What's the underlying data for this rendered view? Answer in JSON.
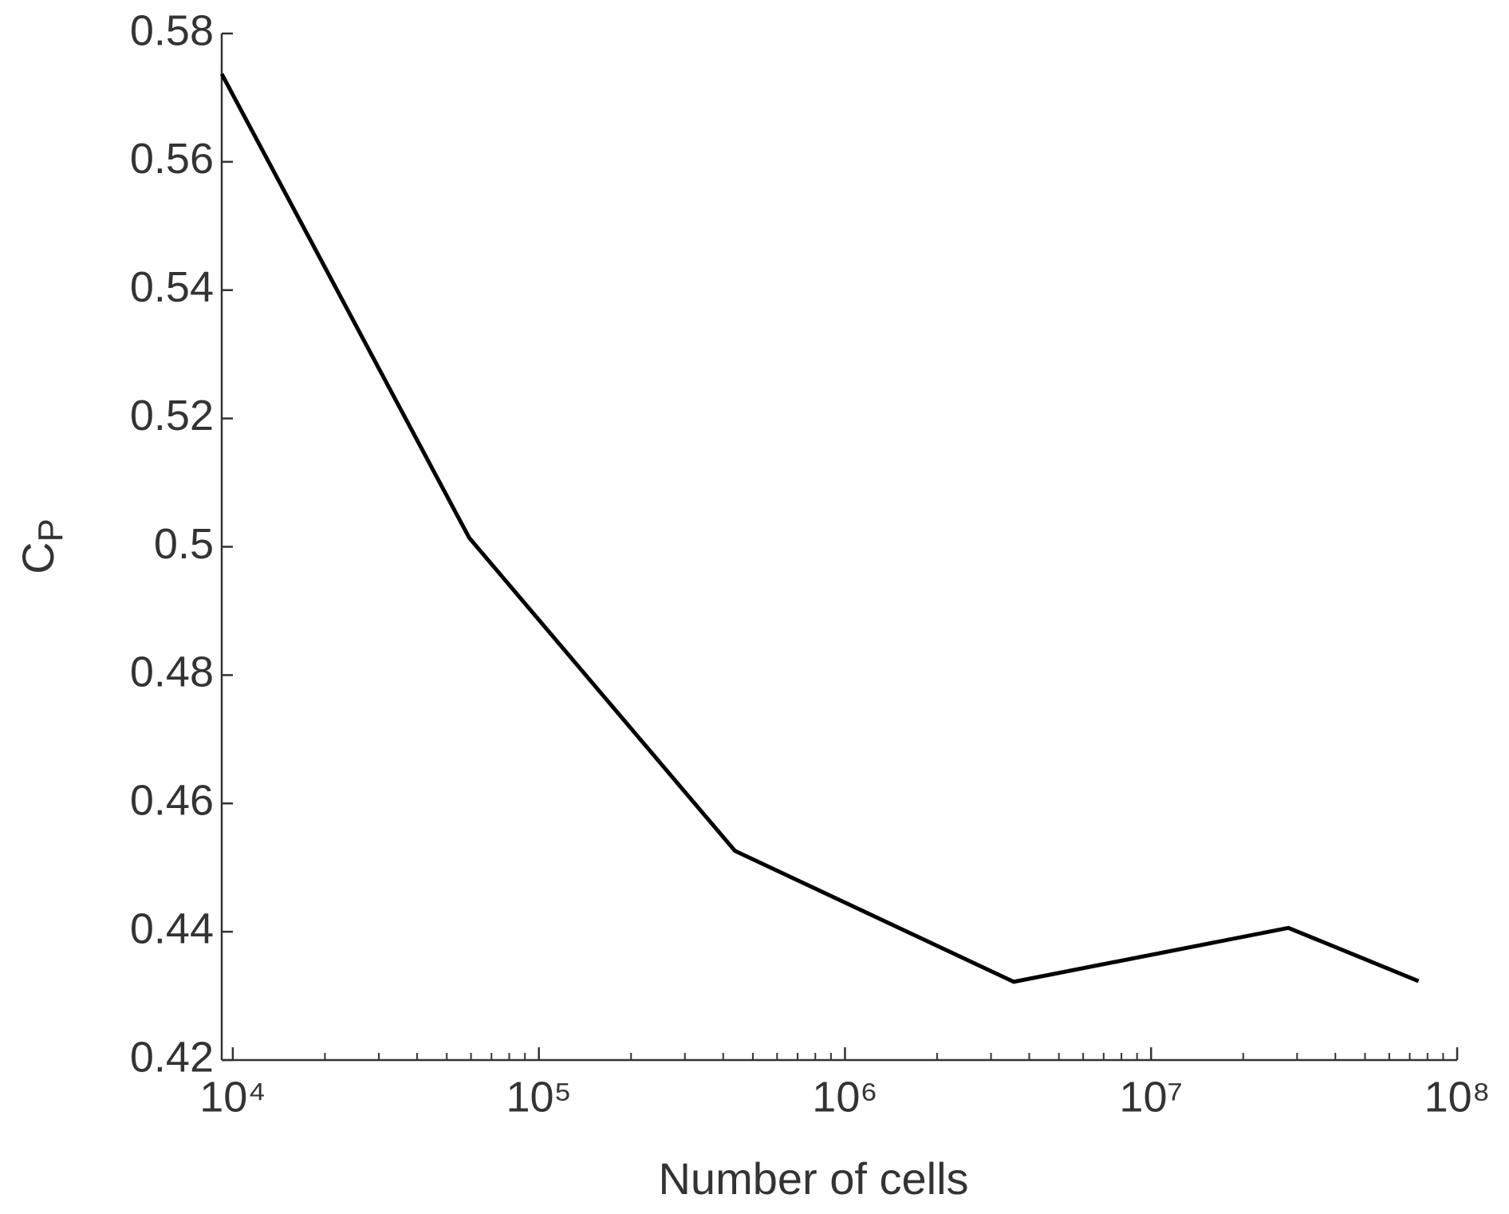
{
  "chart_data": {
    "type": "line",
    "xlabel": "Number of cells",
    "ylabel": "C",
    "ylabel_subscript": "P",
    "xscale": "log",
    "x": [
      9200,
      59200,
      437000,
      3560000,
      28100000,
      74800000
    ],
    "series": [
      {
        "color": "#000000",
        "values": [
          0.5737,
          0.5014,
          0.4526,
          0.4322,
          0.4406,
          0.4323
        ]
      }
    ],
    "xlim": [
      9200,
      100000000
    ],
    "xticks": [
      {
        "value": 10000,
        "label": "10⁴"
      },
      {
        "value": 100000,
        "label": "10⁵"
      },
      {
        "value": 1000000,
        "label": "10⁶"
      },
      {
        "value": 10000000,
        "label": "10⁷"
      },
      {
        "value": 100000000,
        "label": "10⁸"
      }
    ],
    "xminorticks": [
      20000,
      30000,
      40000,
      50000,
      60000,
      70000,
      80000,
      90000,
      200000,
      300000,
      400000,
      500000,
      600000,
      700000,
      800000,
      900000,
      2000000,
      3000000,
      4000000,
      5000000,
      6000000,
      7000000,
      8000000,
      9000000,
      20000000,
      30000000,
      40000000,
      50000000,
      60000000,
      70000000,
      80000000,
      90000000
    ],
    "ylim": [
      0.42,
      0.58
    ],
    "yticks": [
      0.42,
      0.44,
      0.46,
      0.48,
      0.5,
      0.52,
      0.54,
      0.56,
      0.58
    ],
    "grid": false
  }
}
